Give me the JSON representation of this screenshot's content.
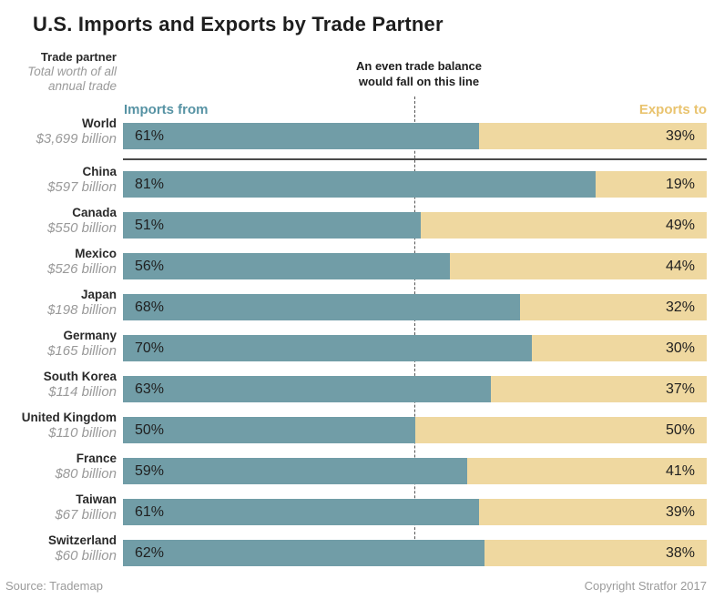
{
  "title": "U.S. Imports and Exports by Trade Partner",
  "header": {
    "partner_column_label": "Trade partner",
    "partner_column_sublabel_line1": "Total worth of all",
    "partner_column_sublabel_line2": "annual trade",
    "balance_note_line1": "An even trade balance",
    "balance_note_line2": "would fall on this line",
    "imports_label": "Imports from",
    "exports_label": "Exports to"
  },
  "chart_data": {
    "type": "bar",
    "orientation": "horizontal-stacked",
    "value_unit": "percent of total two-way trade",
    "xlim": [
      0,
      100
    ],
    "balance_line_pct": 50,
    "legend_position": "above-bars (Imports from = left/teal, Exports to = right/tan)",
    "series": [
      {
        "name": "Imports from",
        "color": "#719da7"
      },
      {
        "name": "Exports to",
        "color": "#efd8a0"
      }
    ],
    "rows": [
      {
        "partner": "World",
        "total": "$3,699 billion",
        "imports_pct": 61,
        "exports_pct": 39
      },
      {
        "partner": "China",
        "total": "$597 billion",
        "imports_pct": 81,
        "exports_pct": 19
      },
      {
        "partner": "Canada",
        "total": "$550 billion",
        "imports_pct": 51,
        "exports_pct": 49
      },
      {
        "partner": "Mexico",
        "total": "$526 billion",
        "imports_pct": 56,
        "exports_pct": 44
      },
      {
        "partner": "Japan",
        "total": "$198 billion",
        "imports_pct": 68,
        "exports_pct": 32
      },
      {
        "partner": "Germany",
        "total": "$165 billion",
        "imports_pct": 70,
        "exports_pct": 30
      },
      {
        "partner": "South Korea",
        "total": "$114 billion",
        "imports_pct": 63,
        "exports_pct": 37
      },
      {
        "partner": "United Kingdom",
        "total": "$110 billion",
        "imports_pct": 50,
        "exports_pct": 50
      },
      {
        "partner": "France",
        "total": "$80 billion",
        "imports_pct": 59,
        "exports_pct": 41
      },
      {
        "partner": "Taiwan",
        "total": "$67 billion",
        "imports_pct": 61,
        "exports_pct": 39
      },
      {
        "partner": "Switzerland",
        "total": "$60 billion",
        "imports_pct": 62,
        "exports_pct": 38
      }
    ]
  },
  "colors": {
    "imports_bar": "#719da7",
    "exports_bar": "#efd8a0",
    "imports_label": "#5793a4",
    "exports_label": "#e9c36e",
    "dark_text": "#1e1e1e",
    "muted_text": "#9a9a9a",
    "separator_line": "#4a4a4a",
    "balance_dash_line": "#555555"
  },
  "footer": {
    "source": "Source: Trademap",
    "copyright": "Copyright Stratfor 2017"
  }
}
